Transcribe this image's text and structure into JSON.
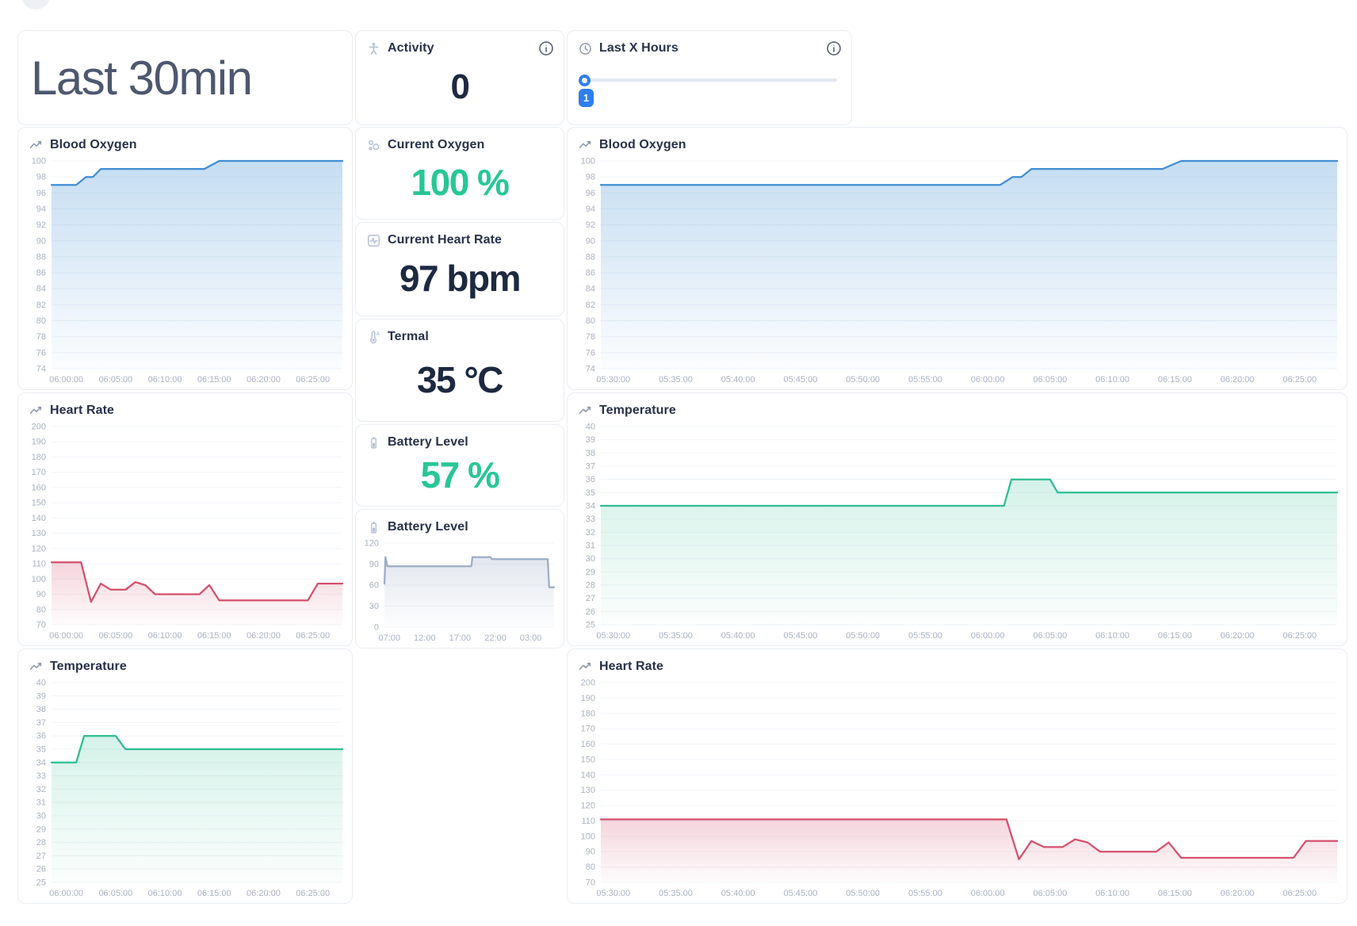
{
  "page": {
    "title": "Last 30min"
  },
  "colors": {
    "accent_blue": "#3f8ed3",
    "accent_rose": "#d5506e",
    "accent_green": "#2cbd90",
    "accent_battery": "#9badc6",
    "value_green": "#27c795",
    "value_navy": "#1d2940",
    "slider_blue": "#2e7ef0"
  },
  "top_row": {
    "activity": {
      "label": "Activity",
      "value": "0"
    },
    "last_x_hours": {
      "label": "Last X Hours",
      "slider_value": "1"
    }
  },
  "stats": [
    {
      "id": "current-oxygen",
      "label": "Current Oxygen",
      "value": "100 %",
      "tone": "green"
    },
    {
      "id": "current-heart-rate",
      "label": "Current Heart Rate",
      "value": "97 bpm",
      "tone": "navy"
    },
    {
      "id": "termal",
      "label": "Termal",
      "value": "35 °C",
      "tone": "navy"
    },
    {
      "id": "battery-level",
      "label": "Battery Level",
      "value": "57 %",
      "tone": "green"
    }
  ],
  "chart_data": [
    {
      "id": "blood-oxygen-30min",
      "type": "area",
      "title": "Blood Oxygen",
      "color": "#3f8ed3",
      "fill_opacity": 0.3,
      "y_min": 74,
      "y_max": 100,
      "y_tick_step": 2,
      "ylim": [
        74,
        100
      ],
      "grid": true,
      "legend": "none",
      "x_unit": "minutes relative to 06:00:00",
      "x_domain": [
        -1.5,
        28
      ],
      "x_ticks": [
        {
          "pos": 0,
          "label": "06:00:00"
        },
        {
          "pos": 5,
          "label": "06:05:00"
        },
        {
          "pos": 10,
          "label": "06:10:00"
        },
        {
          "pos": 15,
          "label": "06:15:00"
        },
        {
          "pos": 20,
          "label": "06:20:00"
        },
        {
          "pos": 25,
          "label": "06:25:00"
        }
      ],
      "points": [
        [
          -1.5,
          97
        ],
        [
          1,
          97
        ],
        [
          2,
          98
        ],
        [
          2.7,
          98
        ],
        [
          3.5,
          99
        ],
        [
          14,
          99
        ],
        [
          15.5,
          100
        ],
        [
          28,
          100
        ]
      ]
    },
    {
      "id": "heart-rate-30min",
      "type": "area",
      "title": "Heart Rate",
      "color": "#d5506e",
      "fill_opacity": 0.24,
      "y_min": 70,
      "y_max": 200,
      "y_tick_step": 10,
      "ylim": [
        70,
        200
      ],
      "grid": true,
      "legend": "none",
      "x_unit": "minutes relative to 06:00:00",
      "x_domain": [
        -1.5,
        28
      ],
      "x_ticks": [
        {
          "pos": 0,
          "label": "06:00:00"
        },
        {
          "pos": 5,
          "label": "06:05:00"
        },
        {
          "pos": 10,
          "label": "06:10:00"
        },
        {
          "pos": 15,
          "label": "06:15:00"
        },
        {
          "pos": 20,
          "label": "06:20:00"
        },
        {
          "pos": 25,
          "label": "06:25:00"
        }
      ],
      "points": [
        [
          -1.5,
          111
        ],
        [
          1.5,
          111
        ],
        [
          2.5,
          85
        ],
        [
          3.5,
          97
        ],
        [
          4.5,
          93
        ],
        [
          6,
          93
        ],
        [
          7,
          98
        ],
        [
          8,
          96
        ],
        [
          9,
          90
        ],
        [
          13.5,
          90
        ],
        [
          14.5,
          96
        ],
        [
          15.5,
          86
        ],
        [
          24.5,
          86
        ],
        [
          25.5,
          97
        ],
        [
          28,
          97
        ]
      ]
    },
    {
      "id": "temperature-30min",
      "type": "area",
      "title": "Temperature",
      "color": "#2cbd90",
      "fill_opacity": 0.2,
      "y_min": 25,
      "y_max": 40,
      "y_tick_step": 1,
      "ylim": [
        25,
        40
      ],
      "grid": true,
      "legend": "none",
      "x_unit": "minutes relative to 06:00:00",
      "x_domain": [
        -1.5,
        28
      ],
      "x_ticks": [
        {
          "pos": 0,
          "label": "06:00:00"
        },
        {
          "pos": 5,
          "label": "06:05:00"
        },
        {
          "pos": 10,
          "label": "06:10:00"
        },
        {
          "pos": 15,
          "label": "06:15:00"
        },
        {
          "pos": 20,
          "label": "06:20:00"
        },
        {
          "pos": 25,
          "label": "06:25:00"
        }
      ],
      "points": [
        [
          -1.5,
          34
        ],
        [
          1,
          34
        ],
        [
          1.8,
          36
        ],
        [
          5,
          36
        ],
        [
          6,
          35
        ],
        [
          28,
          35
        ]
      ]
    },
    {
      "id": "blood-oxygen-xhours",
      "type": "area",
      "title": "Blood Oxygen",
      "color": "#3f8ed3",
      "fill_opacity": 0.3,
      "y_min": 74,
      "y_max": 100,
      "y_tick_step": 2,
      "ylim": [
        74,
        100
      ],
      "grid": true,
      "legend": "none",
      "x_unit": "minutes relative to 06:00:00",
      "x_domain": [
        -31,
        28
      ],
      "x_ticks": [
        {
          "pos": -30,
          "label": "05:30:00"
        },
        {
          "pos": -25,
          "label": "05:35:00"
        },
        {
          "pos": -20,
          "label": "05:40:00"
        },
        {
          "pos": -15,
          "label": "05:45:00"
        },
        {
          "pos": -10,
          "label": "05:50:00"
        },
        {
          "pos": -5,
          "label": "05:55:00"
        },
        {
          "pos": 0,
          "label": "06:00:00"
        },
        {
          "pos": 5,
          "label": "06:05:00"
        },
        {
          "pos": 10,
          "label": "06:10:00"
        },
        {
          "pos": 15,
          "label": "06:15:00"
        },
        {
          "pos": 20,
          "label": "06:20:00"
        },
        {
          "pos": 25,
          "label": "06:25:00"
        }
      ],
      "points": [
        [
          -31,
          97
        ],
        [
          1,
          97
        ],
        [
          2,
          98
        ],
        [
          2.7,
          98
        ],
        [
          3.5,
          99
        ],
        [
          14,
          99
        ],
        [
          15.5,
          100
        ],
        [
          28,
          100
        ]
      ]
    },
    {
      "id": "temperature-xhours",
      "type": "area",
      "title": "Temperature",
      "color": "#2cbd90",
      "fill_opacity": 0.2,
      "y_min": 25,
      "y_max": 40,
      "y_tick_step": 1,
      "ylim": [
        25,
        40
      ],
      "grid": true,
      "legend": "none",
      "x_unit": "minutes relative to 06:00:00",
      "x_domain": [
        -31,
        28
      ],
      "x_ticks": [
        {
          "pos": -30,
          "label": "05:30:00"
        },
        {
          "pos": -25,
          "label": "05:35:00"
        },
        {
          "pos": -20,
          "label": "05:40:00"
        },
        {
          "pos": -15,
          "label": "05:45:00"
        },
        {
          "pos": -10,
          "label": "05:50:00"
        },
        {
          "pos": -5,
          "label": "05:55:00"
        },
        {
          "pos": 0,
          "label": "06:00:00"
        },
        {
          "pos": 5,
          "label": "06:05:00"
        },
        {
          "pos": 10,
          "label": "06:10:00"
        },
        {
          "pos": 15,
          "label": "06:15:00"
        },
        {
          "pos": 20,
          "label": "06:20:00"
        },
        {
          "pos": 25,
          "label": "06:25:00"
        }
      ],
      "points": [
        [
          -31,
          34
        ],
        [
          1.3,
          34
        ],
        [
          1.9,
          36
        ],
        [
          5,
          36
        ],
        [
          5.6,
          35
        ],
        [
          28,
          35
        ]
      ]
    },
    {
      "id": "heart-rate-xhours",
      "type": "area",
      "title": "Heart Rate",
      "color": "#d5506e",
      "fill_opacity": 0.24,
      "y_min": 70,
      "y_max": 200,
      "y_tick_step": 10,
      "ylim": [
        70,
        200
      ],
      "grid": true,
      "legend": "none",
      "x_unit": "minutes relative to 06:00:00",
      "x_domain": [
        -31,
        28
      ],
      "x_ticks": [
        {
          "pos": -30,
          "label": "05:30:00"
        },
        {
          "pos": -25,
          "label": "05:35:00"
        },
        {
          "pos": -20,
          "label": "05:40:00"
        },
        {
          "pos": -15,
          "label": "05:45:00"
        },
        {
          "pos": -10,
          "label": "05:50:00"
        },
        {
          "pos": -5,
          "label": "05:55:00"
        },
        {
          "pos": 0,
          "label": "06:00:00"
        },
        {
          "pos": 5,
          "label": "06:05:00"
        },
        {
          "pos": 10,
          "label": "06:10:00"
        },
        {
          "pos": 15,
          "label": "06:15:00"
        },
        {
          "pos": 20,
          "label": "06:20:00"
        },
        {
          "pos": 25,
          "label": "06:25:00"
        }
      ],
      "points": [
        [
          -31,
          111
        ],
        [
          1.5,
          111
        ],
        [
          2.5,
          85
        ],
        [
          3.5,
          97
        ],
        [
          4.5,
          93
        ],
        [
          6,
          93
        ],
        [
          7,
          98
        ],
        [
          8,
          96
        ],
        [
          9,
          90
        ],
        [
          13.5,
          90
        ],
        [
          14.5,
          96
        ],
        [
          15.5,
          86
        ],
        [
          24.5,
          86
        ],
        [
          25.5,
          97
        ],
        [
          28,
          97
        ]
      ]
    },
    {
      "id": "battery-level-history",
      "type": "area",
      "title": "Battery Level",
      "color": "#9badc6",
      "fill_opacity": 0.3,
      "pad_left": 34,
      "y_min": 0,
      "y_max": 120,
      "y_tick_step": 30,
      "ylim": [
        0,
        120
      ],
      "grid": true,
      "legend": "none",
      "x_unit": "hour of day (24h clock, +24 after midnight)",
      "x_domain": [
        6.3,
        30.3
      ],
      "x_ticks": [
        {
          "pos": 7,
          "label": "07:00"
        },
        {
          "pos": 12,
          "label": "12:00"
        },
        {
          "pos": 17,
          "label": "17:00"
        },
        {
          "pos": 22,
          "label": "22:00"
        },
        {
          "pos": 27,
          "label": "03:00"
        }
      ],
      "points": [
        [
          6.3,
          62
        ],
        [
          6.45,
          100
        ],
        [
          6.7,
          87
        ],
        [
          18.6,
          87
        ],
        [
          18.75,
          100
        ],
        [
          21.3,
          100
        ],
        [
          21.5,
          97
        ],
        [
          29.4,
          97
        ],
        [
          29.6,
          57
        ],
        [
          30.3,
          57
        ]
      ]
    }
  ]
}
